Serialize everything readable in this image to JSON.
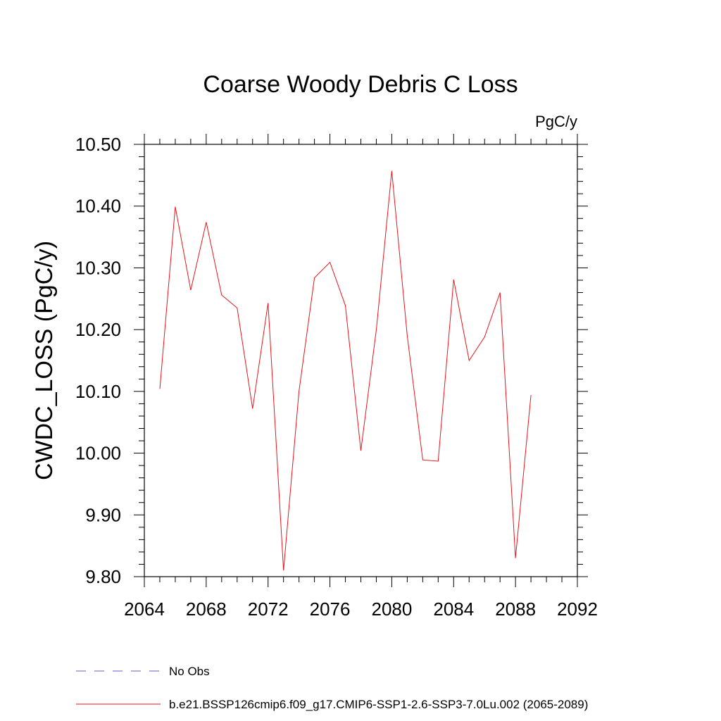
{
  "chart_data": {
    "type": "line",
    "title": "Coarse Woody Debris C Loss",
    "units": "PgC/y",
    "ylabel": "CWDC_LOSS  (PgC/y)",
    "xlabel": "",
    "xlim": [
      2064,
      2092
    ],
    "ylim": [
      9.8,
      10.5
    ],
    "xticks": [
      "2064",
      "2068",
      "2072",
      "2076",
      "2080",
      "2084",
      "2088",
      "2092"
    ],
    "yticks": [
      "9.80",
      "9.90",
      "10.00",
      "10.10",
      "10.20",
      "10.30",
      "10.40",
      "10.50"
    ],
    "grid": false,
    "legend_position": "bottom",
    "series": [
      {
        "name": "No Obs",
        "color": "#6a5acd",
        "style": "dashed",
        "x": [],
        "y": []
      },
      {
        "name": "b.e21.BSSP126cmip6.f09_g17.CMIP6-SSP1-2.6-SSP3-7.0Lu.002 (2065-2089)",
        "color": "#e8141c",
        "style": "solid",
        "x": [
          2065,
          2066,
          2067,
          2068,
          2069,
          2070,
          2071,
          2072,
          2073,
          2074,
          2075,
          2076,
          2077,
          2078,
          2079,
          2080,
          2081,
          2082,
          2083,
          2084,
          2085,
          2086,
          2087,
          2088,
          2089
        ],
        "y": [
          10.104,
          10.399,
          10.264,
          10.374,
          10.256,
          10.235,
          10.072,
          10.243,
          9.81,
          10.1,
          10.284,
          10.309,
          10.239,
          10.004,
          10.2,
          10.457,
          10.19,
          9.989,
          9.987,
          10.281,
          10.15,
          10.188,
          10.26,
          9.83,
          10.094
        ]
      }
    ]
  }
}
